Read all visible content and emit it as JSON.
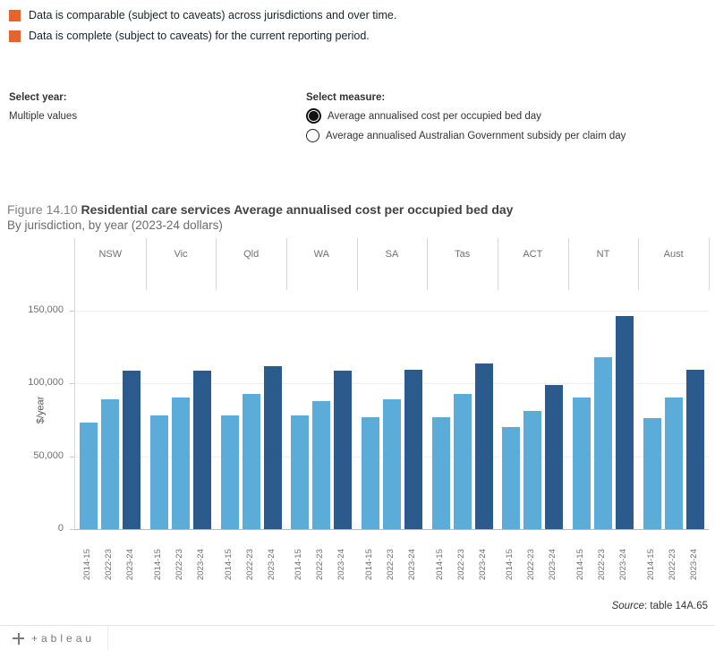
{
  "legend": {
    "square_color": "#E8622C",
    "items": [
      {
        "label": "Data is comparable (subject to caveats) across jurisdictions and over time."
      },
      {
        "label": "Data is complete (subject to caveats) for the current reporting period."
      }
    ]
  },
  "controls": {
    "select_year_label": "Select year:",
    "select_year_value": "Multiple values",
    "select_measure_label": "Select measure:",
    "measure_options": [
      {
        "label": "Average annualised cost per occupied bed day",
        "selected": true
      },
      {
        "label": "Average annualised Australian Government subsidy per claim day",
        "selected": false
      }
    ]
  },
  "figure": {
    "title_prefix": "Figure 14.10",
    "title_main": "Residential care services Average annualised cost per occupied bed day",
    "subtitle": "By jurisdiction, by year (2023-24 dollars)"
  },
  "chart_data": {
    "type": "bar",
    "title": "Figure 14.10 Residential care services Average annualised cost per occupied bed day",
    "subtitle": "By jurisdiction, by year (2023-24 dollars)",
    "categories": [
      "NSW",
      "Vic",
      "Qld",
      "WA",
      "SA",
      "Tas",
      "ACT",
      "NT",
      "Aust"
    ],
    "series": [
      {
        "name": "2014-15",
        "values": [
          73000,
          78000,
          78000,
          78000,
          77000,
          77000,
          70000,
          90000,
          76000
        ]
      },
      {
        "name": "2022-23",
        "values": [
          89000,
          90000,
          93000,
          88000,
          89000,
          93000,
          81000,
          118000,
          90000
        ]
      },
      {
        "name": "2023-24",
        "values": [
          108500,
          109000,
          111500,
          109000,
          109500,
          113500,
          99000,
          146000,
          109500
        ]
      }
    ],
    "colors": [
      "#5BACD8",
      "#5BACD8",
      "#2B5A8C"
    ],
    "xlabel": "",
    "ylabel": "$/year",
    "ylim": [
      0,
      164000
    ],
    "yticks": [
      0,
      50000,
      100000,
      150000
    ],
    "grid": true,
    "legend_position": "none"
  },
  "source": {
    "prefix": "Source",
    "text": ": table 14A.65"
  },
  "footer": {
    "wordmark": "+ableau"
  }
}
